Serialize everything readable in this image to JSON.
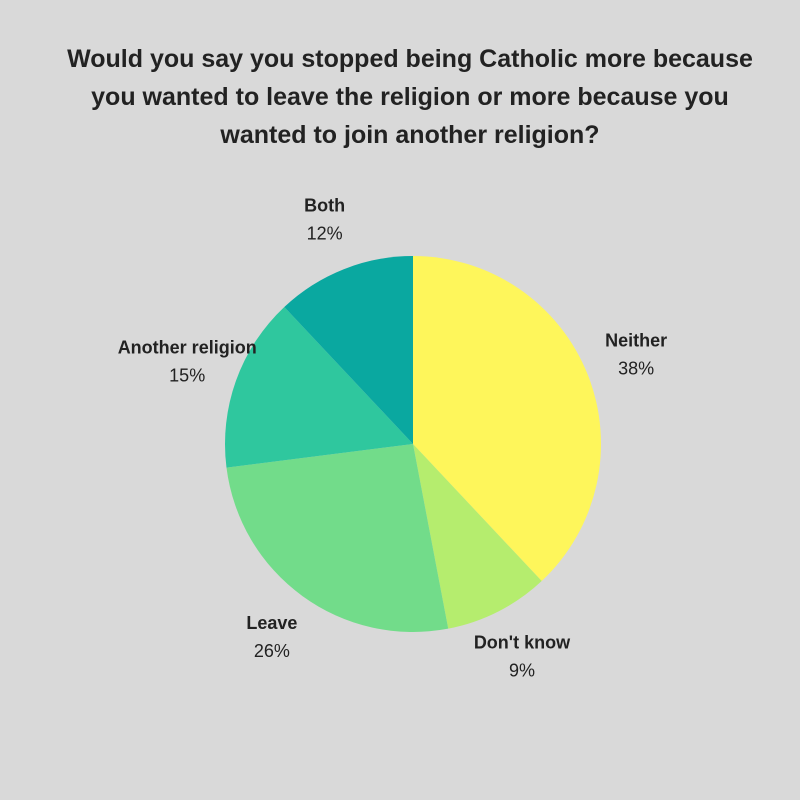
{
  "chart_data": {
    "type": "pie",
    "title": "Would you say you stopped being Catholic more because you wanted to leave the religion or more because you wanted to join another religion?",
    "categories": [
      "Neither",
      "Don't know",
      "Leave",
      "Another religion",
      "Both"
    ],
    "values": [
      38,
      9,
      26,
      15,
      12
    ],
    "value_labels": [
      "38%",
      "9%",
      "26%",
      "15%",
      "12%"
    ],
    "colors": [
      "#fef65b",
      "#b5ed6e",
      "#72dc8a",
      "#2fc79e",
      "#0aa8a0"
    ]
  }
}
